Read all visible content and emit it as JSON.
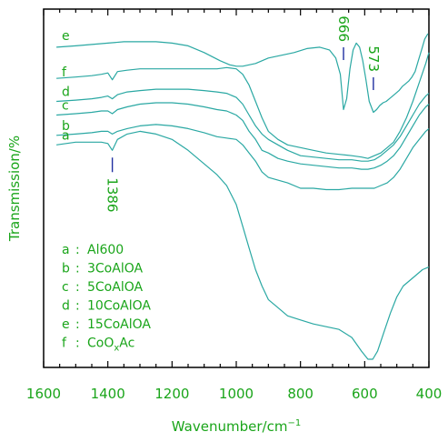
{
  "chart_data": {
    "type": "line",
    "xlabel": "Wavenumber",
    "xlabel_unit": "/cm",
    "xlabel_unit_exp": "−1",
    "ylabel": "Transmission/%",
    "xlim": [
      1600,
      400
    ],
    "x_reversed": true,
    "xticks": [
      1600,
      1400,
      1200,
      1000,
      800,
      600,
      400
    ],
    "y_tick_labels": false,
    "legend_position": "bottom-left",
    "legend": [
      {
        "key": "a",
        "name": "Al600"
      },
      {
        "key": "b",
        "name": "3CoAlOA"
      },
      {
        "key": "c",
        "name": "5CoAlOA"
      },
      {
        "key": "d",
        "name": "10CoAlOA"
      },
      {
        "key": "e",
        "name": "15CoAlOA"
      },
      {
        "key": "f",
        "name": "CoO",
        "subscript": "x",
        "suffix": "Ac"
      }
    ],
    "legend_separator": ":",
    "series": [
      {
        "key": "a",
        "x": [
          1560,
          1500,
          1450,
          1420,
          1400,
          1386,
          1370,
          1340,
          1300,
          1250,
          1200,
          1150,
          1100,
          1060,
          1030,
          1000,
          980,
          960,
          940,
          920,
          900,
          870,
          840,
          800,
          760,
          720,
          680,
          640,
          610,
          590,
          575,
          560,
          540,
          520,
          500,
          480,
          460,
          440,
          420,
          400
        ],
        "y": [
          52,
          53,
          53,
          53,
          52.5,
          50,
          54,
          56,
          57,
          56,
          54,
          50,
          45,
          41,
          37,
          30,
          22,
          14,
          6,
          0,
          -5,
          -8,
          -11,
          -12.5,
          -14,
          -15,
          -16,
          -19,
          -24,
          -27,
          -27,
          -24,
          -17,
          -10,
          -4,
          0,
          2,
          4,
          6,
          7
        ]
      },
      {
        "key": "b",
        "x": [
          1560,
          1500,
          1450,
          1420,
          1400,
          1386,
          1370,
          1340,
          1300,
          1250,
          1200,
          1150,
          1100,
          1060,
          1030,
          1000,
          980,
          960,
          940,
          920,
          900,
          870,
          840,
          800,
          760,
          720,
          680,
          640,
          610,
          590,
          570,
          550,
          530,
          510,
          490,
          470,
          450,
          430,
          410,
          400
        ],
        "y": [
          55.5,
          56,
          56.5,
          57,
          57,
          56,
          57,
          58,
          59,
          59.5,
          59,
          58,
          56.5,
          55,
          54.5,
          54,
          52,
          49,
          46,
          42,
          40,
          39,
          38,
          36,
          36,
          35.5,
          35.5,
          36,
          36,
          36,
          36,
          37,
          38,
          40,
          43,
          47,
          51,
          54,
          57,
          58
        ]
      },
      {
        "key": "c",
        "x": [
          1560,
          1500,
          1450,
          1420,
          1400,
          1386,
          1370,
          1340,
          1300,
          1250,
          1200,
          1150,
          1100,
          1060,
          1030,
          1000,
          980,
          960,
          940,
          920,
          900,
          870,
          840,
          800,
          760,
          720,
          680,
          640,
          610,
          590,
          570,
          550,
          530,
          510,
          490,
          470,
          450,
          430,
          410,
          400
        ],
        "y": [
          63,
          63.5,
          64,
          64.5,
          64.5,
          63.5,
          65,
          66,
          67,
          67.5,
          67.5,
          67,
          66,
          65,
          64.5,
          63,
          61,
          57,
          54,
          50,
          49,
          47,
          46,
          45,
          44.5,
          44,
          43.5,
          43.5,
          43,
          43,
          43.5,
          44.5,
          46,
          48,
          51,
          55,
          59,
          63,
          66,
          67
        ]
      },
      {
        "key": "d",
        "x": [
          1560,
          1500,
          1450,
          1420,
          1400,
          1386,
          1370,
          1340,
          1300,
          1250,
          1200,
          1150,
          1100,
          1060,
          1030,
          1000,
          980,
          960,
          940,
          920,
          900,
          870,
          840,
          800,
          760,
          720,
          680,
          640,
          610,
          590,
          570,
          550,
          530,
          510,
          490,
          470,
          450,
          430,
          410,
          400
        ],
        "y": [
          68,
          68.5,
          69,
          69.5,
          70,
          69,
          70.5,
          71.5,
          72,
          72.5,
          72.5,
          72.5,
          72,
          71.5,
          71,
          69.5,
          67,
          63,
          59,
          56,
          54,
          52,
          50,
          48,
          47.5,
          47,
          46.5,
          46.5,
          46,
          46,
          46.5,
          48,
          50,
          52,
          55,
          59,
          63,
          67,
          70,
          71
        ]
      },
      {
        "key": "e",
        "x": [
          1560,
          1500,
          1450,
          1400,
          1350,
          1300,
          1250,
          1200,
          1150,
          1100,
          1050,
          1020,
          1000,
          980,
          960,
          940,
          920,
          900,
          860,
          820,
          780,
          740,
          710,
          690,
          676,
          666,
          656,
          646,
          636,
          626,
          616,
          606,
          596,
          586,
          573,
          563,
          553,
          543,
          533,
          523,
          513,
          503,
          493,
          483,
          473,
          463,
          453,
          443,
          433,
          423,
          413,
          403
        ],
        "y": [
          88,
          88.5,
          89,
          89.5,
          90,
          90,
          90,
          89.5,
          88.5,
          86,
          83,
          81.5,
          81,
          81,
          81.5,
          82,
          83,
          84,
          85,
          86,
          87.5,
          88,
          87,
          84,
          78,
          65,
          69,
          80,
          87,
          89.5,
          88,
          83,
          76,
          68,
          64,
          65,
          66.5,
          67.5,
          68,
          69,
          70,
          71,
          72,
          73.5,
          74.5,
          75.5,
          77,
          79,
          83,
          87,
          91,
          93
        ]
      },
      {
        "key": "f",
        "x": [
          1560,
          1500,
          1450,
          1420,
          1400,
          1386,
          1370,
          1340,
          1300,
          1250,
          1200,
          1150,
          1100,
          1060,
          1030,
          1000,
          980,
          960,
          940,
          920,
          900,
          870,
          840,
          800,
          760,
          720,
          680,
          640,
          610,
          590,
          570,
          550,
          530,
          510,
          490,
          470,
          450,
          430,
          410,
          400
        ],
        "y": [
          76.5,
          77,
          77.5,
          78,
          78.5,
          76,
          79,
          79.5,
          80,
          80,
          80,
          80,
          80,
          80,
          80.5,
          80,
          78,
          74,
          68,
          62,
          57,
          54,
          52,
          51,
          50,
          49,
          48.5,
          48,
          47.5,
          47,
          48,
          49,
          51,
          53,
          57,
          62,
          68,
          75,
          82,
          86
        ]
      }
    ],
    "marker_lines": [
      {
        "x": 1386,
        "label": "1386",
        "series": "a"
      },
      {
        "x": 666,
        "label": "666",
        "series": "e"
      },
      {
        "x": 573,
        "label": "573",
        "series": "e"
      }
    ]
  },
  "colors": {
    "line": "#2aa8a3",
    "text": "#1aa51a",
    "axis": "#000000",
    "marker": "#1f2ea0"
  }
}
